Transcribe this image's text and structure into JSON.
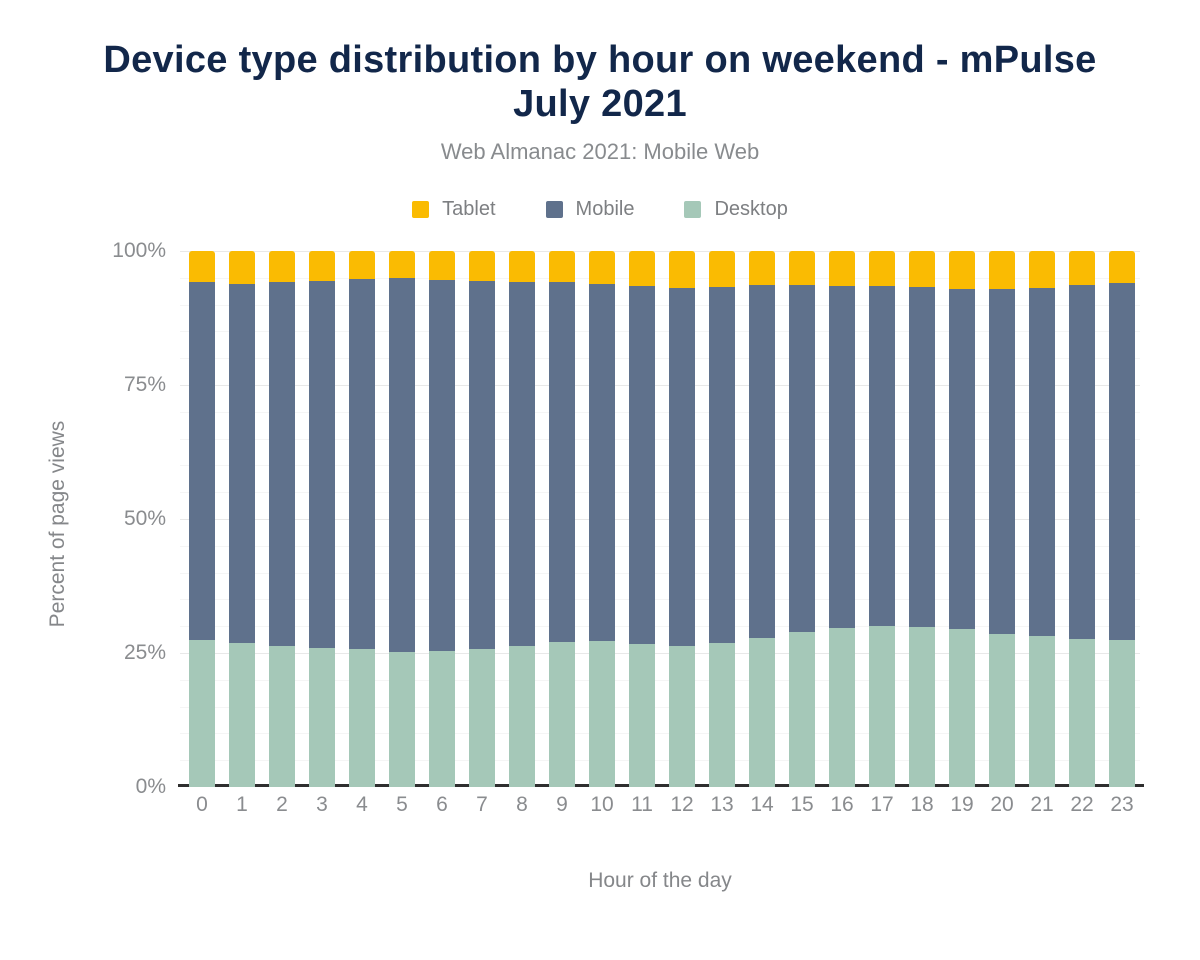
{
  "header": {
    "title": "Device type distribution by hour on weekend - mPulse July 2021",
    "subtitle": "Web Almanac 2021: Mobile Web"
  },
  "palette": {
    "title_color": "#12274a",
    "muted_text": "#85878a",
    "axis_line": "#2e2e2e",
    "gridline_major": "#e8e8e8",
    "gridline_minor": "#f5f5f5"
  },
  "chart_data": {
    "type": "bar",
    "stacked": true,
    "stack_total": 100,
    "title": "Device type distribution by hour on weekend - mPulse July 2021",
    "subtitle": "Web Almanac 2021: Mobile Web",
    "xlabel": "Hour of the day",
    "ylabel": "Percent of page views",
    "x_values": [
      0,
      1,
      2,
      3,
      4,
      5,
      6,
      7,
      8,
      9,
      10,
      11,
      12,
      13,
      14,
      15,
      16,
      17,
      18,
      19,
      20,
      21,
      22,
      23
    ],
    "yticks": [
      "0%",
      "25%",
      "50%",
      "75%",
      "100%"
    ],
    "ylim": [
      0,
      100
    ],
    "grid": {
      "minor_every_percent": 5,
      "major_every_percent": 25
    },
    "legend_position": "top",
    "series": [
      {
        "name": "Tablet",
        "color": "#fabb02",
        "values": [
          5.8,
          6.1,
          5.8,
          5.6,
          5.3,
          5.1,
          5.4,
          5.6,
          5.8,
          5.8,
          6.1,
          6.5,
          6.9,
          6.7,
          6.4,
          6.3,
          6.5,
          6.5,
          6.8,
          7.0,
          7.1,
          6.9,
          6.3,
          6.0
        ]
      },
      {
        "name": "Mobile",
        "color": "#5f718c",
        "values": [
          66.7,
          67.1,
          67.8,
          68.4,
          69.0,
          69.7,
          69.2,
          68.6,
          67.8,
          67.1,
          66.7,
          66.9,
          66.8,
          66.4,
          65.8,
          64.8,
          63.8,
          63.5,
          63.3,
          63.6,
          64.4,
          64.9,
          66.0,
          66.5
        ]
      },
      {
        "name": "Desktop",
        "color": "#a5c8b8",
        "values": [
          27.5,
          26.8,
          26.4,
          26.0,
          25.7,
          25.2,
          25.4,
          25.8,
          26.4,
          27.1,
          27.2,
          26.6,
          26.3,
          26.9,
          27.8,
          28.9,
          29.7,
          30.0,
          29.9,
          29.4,
          28.5,
          28.2,
          27.7,
          27.5
        ]
      }
    ]
  }
}
